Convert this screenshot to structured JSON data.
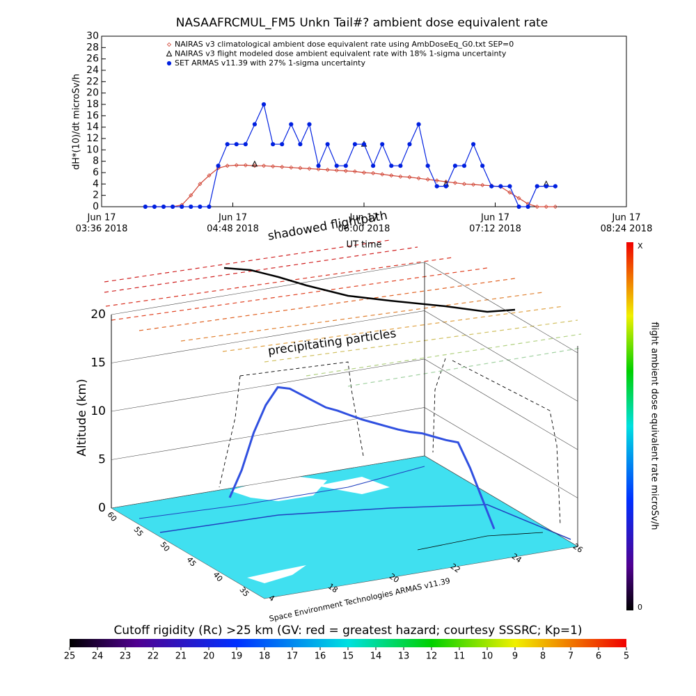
{
  "chart_data": [
    {
      "type": "line",
      "title": "NASAAFRCMUL_FM5 Unkn Tail#? ambient dose equivalent rate",
      "y_label": "dH*(10)/dt microSv/h",
      "x_label": "UT time",
      "xlim": [
        "03:36",
        "08:24"
      ],
      "xticks": [
        {
          "value": "03:36",
          "label": [
            "Jun 17",
            "03:36 2018"
          ]
        },
        {
          "value": "04:48",
          "label": [
            "Jun 17",
            "04:48 2018"
          ]
        },
        {
          "value": "06:00",
          "label": [
            "Jun 17",
            "06:00 2018"
          ]
        },
        {
          "value": "07:12",
          "label": [
            "Jun 17",
            "07:12 2018"
          ]
        },
        {
          "value": "08:24",
          "label": [
            "Jun 17",
            "08:24 2018"
          ]
        }
      ],
      "ylim": [
        0,
        30
      ],
      "yticks": [
        0,
        2,
        4,
        6,
        8,
        10,
        12,
        14,
        16,
        18,
        20,
        22,
        24,
        26,
        28,
        30
      ],
      "x": [
        "04:00",
        "04:05",
        "04:10",
        "04:15",
        "04:20",
        "04:25",
        "04:30",
        "04:35",
        "04:40",
        "04:45",
        "04:50",
        "04:55",
        "05:00",
        "05:05",
        "05:10",
        "05:15",
        "05:20",
        "05:25",
        "05:30",
        "05:35",
        "05:40",
        "05:45",
        "05:50",
        "05:55",
        "06:00",
        "06:05",
        "06:10",
        "06:15",
        "06:20",
        "06:25",
        "06:30",
        "06:35",
        "06:40",
        "06:45",
        "06:50",
        "06:55",
        "07:00",
        "07:05",
        "07:10",
        "07:15",
        "07:20",
        "07:25",
        "07:30",
        "07:35",
        "07:40",
        "07:45"
      ],
      "series": [
        {
          "name": "NAIRAS v3 climatological ambient dose equivalent rate using AmbDoseEq_G0.txt SEP=0",
          "color": "#d04030",
          "marker": "diamond",
          "line": true,
          "values": [
            0,
            0,
            0,
            0,
            0.3,
            2,
            4,
            5.5,
            6.8,
            7.2,
            7.3,
            7.3,
            7.2,
            7.2,
            7.1,
            7.0,
            6.9,
            6.8,
            6.7,
            6.6,
            6.5,
            6.4,
            6.3,
            6.2,
            6.0,
            5.9,
            5.7,
            5.5,
            5.3,
            5.2,
            5.0,
            4.8,
            4.6,
            4.4,
            4.2,
            4.0,
            3.9,
            3.8,
            3.7,
            3.5,
            2.5,
            1.5,
            0.5,
            0,
            0,
            0
          ]
        },
        {
          "name": "NAIRAS v3 flight modeled dose ambient equivalent rate with 18% 1-sigma uncertainty",
          "color": "#000000",
          "marker": "triangle",
          "line": false,
          "values": [
            null,
            null,
            null,
            null,
            null,
            null,
            null,
            null,
            null,
            null,
            null,
            null,
            7.5,
            null,
            null,
            null,
            null,
            null,
            null,
            null,
            null,
            null,
            null,
            null,
            11,
            null,
            null,
            null,
            null,
            null,
            null,
            null,
            null,
            4,
            null,
            null,
            null,
            null,
            null,
            null,
            null,
            null,
            null,
            null,
            4,
            null
          ]
        },
        {
          "name": "SET ARMAS v11.39 with 27% 1-sigma uncertainty",
          "color": "#0020e0",
          "marker": "circle",
          "line": true,
          "values": [
            0,
            0,
            0,
            0,
            0,
            0,
            0,
            0,
            7.2,
            11,
            11,
            11,
            14.5,
            18,
            11,
            11,
            14.5,
            11,
            14.5,
            7.2,
            11,
            7.2,
            7.2,
            11,
            11,
            7.2,
            11,
            7.2,
            7.2,
            11,
            14.5,
            7.2,
            3.6,
            3.6,
            7.2,
            7.2,
            11,
            7.2,
            3.6,
            3.6,
            3.6,
            0,
            0,
            3.6,
            3.6,
            3.6
          ]
        }
      ]
    },
    {
      "type": "flight3d",
      "title": "shadowed flightpath",
      "annotation": "precipitating particles",
      "z_label": "Altitude (km)",
      "zlim": [
        0,
        20
      ],
      "zticks": [
        0,
        5,
        10,
        15,
        20
      ],
      "lat_ticks": [
        "60",
        "55",
        "50",
        "45",
        "40",
        "35"
      ],
      "lon_ticks": [
        "4",
        "18",
        "20",
        "22",
        "24",
        "26"
      ],
      "credit": "Space Environment Technologies ARMAS v11.39",
      "color": "#3050e0",
      "altitude": [
        0,
        3,
        7,
        10,
        12,
        12,
        11.5,
        11,
        10.5,
        10.3,
        10,
        9.7,
        9.5,
        9.3,
        9.1,
        9.0,
        9.0,
        8.8,
        8.6,
        8.5,
        6,
        3,
        0
      ],
      "colorbar_label": "flight ambient dose equivalent rate microSv/h",
      "colorbar_ends": [
        "X",
        "0"
      ],
      "rigidity_label": "Cutoff rigidity (Rc) >25 km (GV: red = greatest hazard; courtesy SSSRC; Kp=1)",
      "rigidity_ticks": [
        25,
        24,
        23,
        22,
        21,
        20,
        19,
        18,
        17,
        16,
        15,
        14,
        13,
        12,
        11,
        10,
        9,
        8,
        7,
        6,
        5
      ]
    }
  ]
}
